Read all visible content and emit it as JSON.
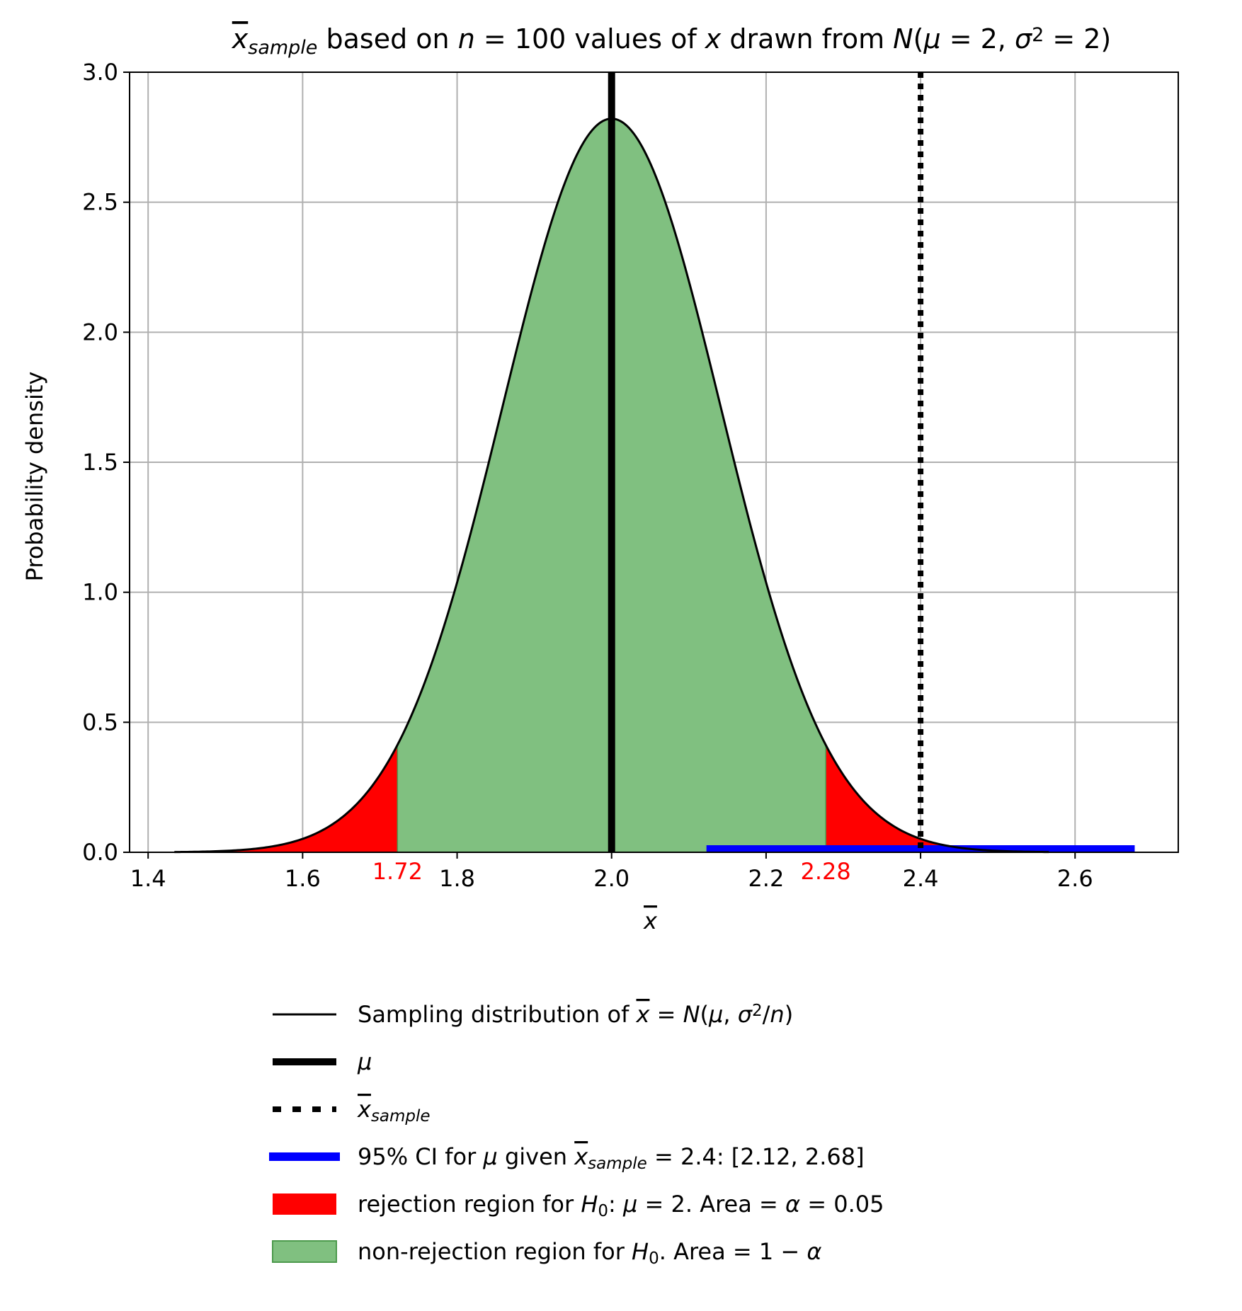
{
  "chart_data": {
    "type": "area",
    "title": {
      "parts": [
        {
          "t": "x",
          "i": true,
          "bar": true
        },
        {
          "t": "sample",
          "i": true,
          "sub": true
        },
        {
          "t": " based on "
        },
        {
          "t": "n",
          "i": true
        },
        {
          "t": " = 100 values of "
        },
        {
          "t": "x",
          "i": true
        },
        {
          "t": " drawn from "
        },
        {
          "t": "N",
          "i": true
        },
        {
          "t": "("
        },
        {
          "t": "μ",
          "i": true
        },
        {
          "t": " = 2, "
        },
        {
          "t": "σ",
          "i": true
        },
        {
          "t": "2",
          "sup": true
        },
        {
          "t": " = 2)"
        }
      ]
    },
    "xlabel": "x",
    "ylabel": "Probability density",
    "xlim": [
      1.376,
      2.7336
    ],
    "ylim": [
      0,
      3.0
    ],
    "xticks": [
      1.4,
      1.6,
      1.8,
      2.0,
      2.2,
      2.4,
      2.6
    ],
    "xtick_labels": [
      "1.4",
      "1.6",
      "1.8",
      "2.0",
      "2.2",
      "2.4",
      "2.6"
    ],
    "yticks": [
      0.0,
      0.5,
      1.0,
      1.5,
      2.0,
      2.5,
      3.0
    ],
    "ytick_labels": [
      "0.0",
      "0.5",
      "1.0",
      "1.5",
      "2.0",
      "2.5",
      "3.0"
    ],
    "grid": true,
    "legend_position": "below-center",
    "distribution": {
      "mean": 2.0,
      "sd": 0.1414,
      "x_min": 1.434,
      "x_max": 2.566
    },
    "mu": 2.0,
    "x_sample": 2.4,
    "critical_values": [
      1.7228,
      2.2772
    ],
    "critical_labels": [
      "1.72",
      "2.28"
    ],
    "ci": [
      2.1228,
      2.6772
    ],
    "alpha": 0.05,
    "colors": {
      "curve": "#000000",
      "rejection": "#ff0000",
      "non_rejection": "#80c080",
      "ci": "#0000ff",
      "grid": "#b0b0b0"
    },
    "legend": [
      {
        "key": "curve",
        "parts": [
          {
            "t": "Sampling distribution of "
          },
          {
            "t": "x",
            "i": true,
            "bar": true
          },
          {
            "t": " = "
          },
          {
            "t": "N",
            "i": true
          },
          {
            "t": "("
          },
          {
            "t": "μ",
            "i": true
          },
          {
            "t": ", "
          },
          {
            "t": "σ",
            "i": true
          },
          {
            "t": "2",
            "sup": true
          },
          {
            "t": "/"
          },
          {
            "t": "n",
            "i": true
          },
          {
            "t": ")"
          }
        ]
      },
      {
        "key": "mu",
        "parts": [
          {
            "t": "μ",
            "i": true
          }
        ]
      },
      {
        "key": "xsample",
        "parts": [
          {
            "t": "x",
            "i": true,
            "bar": true
          },
          {
            "t": "sample",
            "i": true,
            "sub": true
          }
        ]
      },
      {
        "key": "ci",
        "parts": [
          {
            "t": "95% CI for "
          },
          {
            "t": "μ",
            "i": true
          },
          {
            "t": " given "
          },
          {
            "t": "x",
            "i": true,
            "bar": true
          },
          {
            "t": "sample",
            "i": true,
            "sub": true
          },
          {
            "t": " = 2.4: [2.12, 2.68]"
          }
        ]
      },
      {
        "key": "rejection",
        "parts": [
          {
            "t": "rejection region for "
          },
          {
            "t": "H",
            "i": true
          },
          {
            "t": "0",
            "sub": true
          },
          {
            "t": ": "
          },
          {
            "t": "μ",
            "i": true
          },
          {
            "t": " = 2. Area = "
          },
          {
            "t": "α",
            "i": true
          },
          {
            "t": " = 0.05"
          }
        ]
      },
      {
        "key": "non_rejection",
        "parts": [
          {
            "t": "non-rejection region for "
          },
          {
            "t": "H",
            "i": true
          },
          {
            "t": "0",
            "sub": true
          },
          {
            "t": ". Area = 1 − "
          },
          {
            "t": "α",
            "i": true
          }
        ]
      }
    ]
  }
}
